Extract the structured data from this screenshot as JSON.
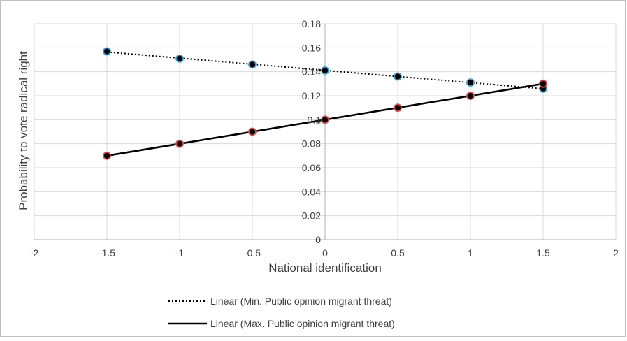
{
  "chart_data": {
    "type": "scatter",
    "title": "",
    "xlabel": "National identification",
    "ylabel": "Probability to vote radical right",
    "xlim": [
      -2,
      2
    ],
    "ylim": [
      0,
      0.18
    ],
    "x_ticks": [
      "-2",
      "-1.5",
      "-1",
      "-0.5",
      "0",
      "0.5",
      "1",
      "1.5",
      "2"
    ],
    "y_ticks": [
      "0",
      "0.02",
      "0.04",
      "0.06",
      "0.08",
      "0.1",
      "0.12",
      "0.14",
      "0.16",
      "0.18"
    ],
    "grid": true,
    "legend_position": "bottom",
    "series": [
      {
        "name": "Min. Public opinion migrant threat",
        "x": [
          -1.5,
          -1,
          -0.5,
          0,
          0.5,
          1,
          1.5
        ],
        "y": [
          0.157,
          0.151,
          0.146,
          0.141,
          0.136,
          0.131,
          0.126
        ],
        "marker_color": "#2e9fdc",
        "trendline": "dotted"
      },
      {
        "name": "Max. Public opinion migrant threat",
        "x": [
          -1.5,
          -1,
          -0.5,
          0,
          0.5,
          1,
          1.5
        ],
        "y": [
          0.07,
          0.08,
          0.09,
          0.1,
          0.11,
          0.12,
          0.13
        ],
        "marker_color": "#e0474c",
        "trendline": "solid"
      }
    ],
    "legend": [
      "Linear (Min. Public opinion migrant threat)",
      "Linear (Max. Public opinion migrant threat)"
    ]
  }
}
